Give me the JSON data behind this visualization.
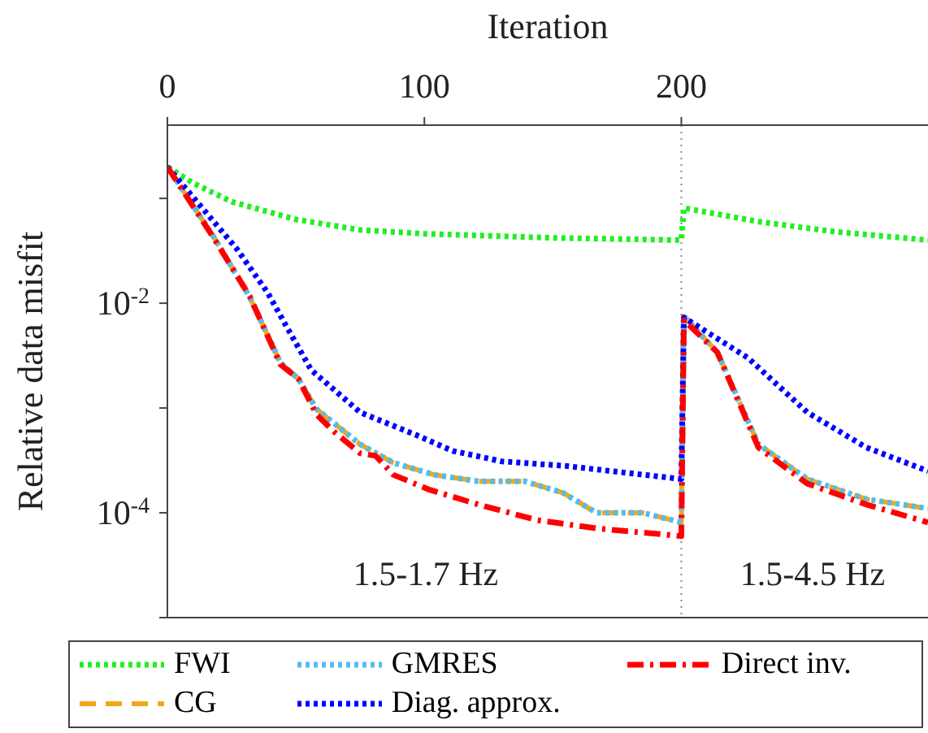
{
  "chart_data": {
    "type": "line",
    "xlabel": "Iteration",
    "ylabel": "Relative data misfit",
    "xlim": [
      0,
      296
    ],
    "xticks": [
      0,
      100,
      200
    ],
    "ylim": [
      1e-05,
      0.5
    ],
    "log": "y",
    "yticks": [
      {
        "value": 0.1,
        "label": null
      },
      {
        "value": 0.01,
        "label": "10$^{-2}$"
      },
      {
        "value": 0.001,
        "label": null
      },
      {
        "value": 0.0001,
        "label": "10$^{-4}$"
      },
      {
        "value": 1e-05,
        "label": null
      }
    ],
    "grid": false,
    "legend": "bottom",
    "marker": "none",
    "ref_lines": [
      {
        "axis": "x",
        "value": 200,
        "color": "#888888",
        "line_style": "dotted"
      }
    ],
    "annotations": [
      "1.5-1.7 Hz",
      "1.5-4.5 Hz"
    ],
    "series": [
      {
        "name": "FWI",
        "color": "#22ee22",
        "line_style": "dotted",
        "x": [
          0,
          10,
          25,
          50,
          75,
          100,
          150,
          200,
          201,
          230,
          260,
          296
        ],
        "values": [
          0.2,
          0.14,
          0.093,
          0.063,
          0.05,
          0.046,
          0.042,
          0.04,
          0.081,
          0.06,
          0.048,
          0.04
        ]
      },
      {
        "name": "CG",
        "color": "#f0a818",
        "line_style": "dashed",
        "x": [
          0,
          18,
          32,
          44,
          51,
          58,
          75,
          88,
          104,
          121,
          139,
          154,
          167,
          185,
          200,
          201,
          214,
          230,
          249,
          272,
          296
        ],
        "values": [
          0.2,
          0.043,
          0.0115,
          0.0027,
          0.0019,
          0.00098,
          0.00045,
          0.0003,
          0.00023,
          0.0002,
          0.0002,
          0.000155,
          0.0001,
          0.0001,
          8.1e-05,
          0.0075,
          0.0034,
          0.00045,
          0.00021,
          0.000135,
          0.00011
        ]
      },
      {
        "name": "GMRES",
        "color": "#55bbee",
        "line_style": "dotted",
        "x": [
          0,
          18,
          32,
          44,
          51,
          58,
          75,
          88,
          104,
          121,
          139,
          154,
          167,
          185,
          200,
          201,
          214,
          230,
          249,
          272,
          296
        ],
        "values": [
          0.2,
          0.043,
          0.0115,
          0.0027,
          0.0019,
          0.00098,
          0.00045,
          0.0003,
          0.00023,
          0.0002,
          0.0002,
          0.000155,
          0.0001,
          0.0001,
          8.1e-05,
          0.0075,
          0.0034,
          0.00045,
          0.00021,
          0.000135,
          0.00011
        ]
      },
      {
        "name": "Diag. approx.",
        "color": "#0000ff",
        "line_style": "dotted",
        "x": [
          0,
          27,
          39,
          46,
          56,
          75,
          97,
          111,
          130,
          155,
          200,
          201,
          226,
          249,
          272,
          296
        ],
        "values": [
          0.2,
          0.033,
          0.0126,
          0.0062,
          0.0023,
          0.00091,
          0.00055,
          0.00039,
          0.00031,
          0.00028,
          0.00021,
          0.0073,
          0.003,
          0.00091,
          0.00042,
          0.00025
        ]
      },
      {
        "name": "Direct inv.",
        "color": "#ff0000",
        "line_style": "dashdot",
        "x": [
          0,
          18,
          32,
          44,
          51,
          58,
          65,
          75,
          81,
          88,
          102,
          121,
          144,
          167,
          200,
          201,
          214,
          230,
          249,
          272,
          296
        ],
        "values": [
          0.2,
          0.042,
          0.0117,
          0.0026,
          0.0019,
          0.00087,
          0.00059,
          0.00037,
          0.00035,
          0.00023,
          0.000166,
          0.00012,
          8.5e-05,
          7.1e-05,
          6e-05,
          0.0069,
          0.0034,
          0.00042,
          0.00019,
          0.00012,
          8.1e-05
        ]
      }
    ]
  }
}
